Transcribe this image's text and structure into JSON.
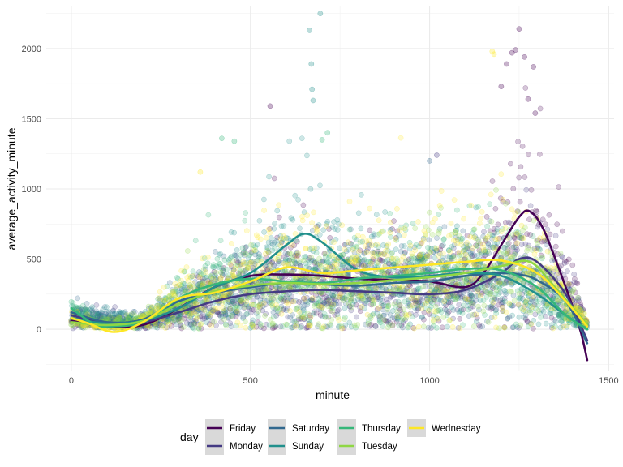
{
  "chart_data": {
    "type": "scatter",
    "xlabel": "minute",
    "ylabel": "average_activity_minute",
    "xlim": [
      -70,
      1515
    ],
    "ylim": [
      -300,
      2300
    ],
    "x_ticks": [
      0,
      500,
      1000,
      1500
    ],
    "y_ticks": [
      0,
      500,
      1000,
      1500,
      2000
    ],
    "grid": true,
    "legend": {
      "title": "day",
      "position": "bottom",
      "entries": [
        "Friday",
        "Monday",
        "Saturday",
        "Sunday",
        "Thursday",
        "Tuesday",
        "Wednesday"
      ]
    },
    "series": [
      {
        "name": "Friday",
        "color": "#440154",
        "smooth": [
          [
            0,
            60
          ],
          [
            100,
            20
          ],
          [
            200,
            30
          ],
          [
            300,
            150
          ],
          [
            400,
            300
          ],
          [
            500,
            380
          ],
          [
            600,
            390
          ],
          [
            700,
            380
          ],
          [
            800,
            360
          ],
          [
            900,
            350
          ],
          [
            1000,
            340
          ],
          [
            1100,
            300
          ],
          [
            1150,
            400
          ],
          [
            1200,
            600
          ],
          [
            1250,
            800
          ],
          [
            1280,
            840
          ],
          [
            1320,
            700
          ],
          [
            1380,
            300
          ],
          [
            1420,
            0
          ],
          [
            1440,
            -220
          ]
        ],
        "scatter_profile": [
          [
            0,
            60
          ],
          [
            200,
            30
          ],
          [
            300,
            120
          ],
          [
            400,
            250
          ],
          [
            500,
            350
          ],
          [
            600,
            380
          ],
          [
            700,
            360
          ],
          [
            800,
            340
          ],
          [
            900,
            330
          ],
          [
            1000,
            330
          ],
          [
            1100,
            320
          ],
          [
            1150,
            380
          ],
          [
            1200,
            550
          ],
          [
            1250,
            780
          ],
          [
            1300,
            760
          ],
          [
            1350,
            500
          ],
          [
            1440,
            40
          ]
        ]
      },
      {
        "name": "Monday",
        "color": "#443A83",
        "smooth": [
          [
            0,
            100
          ],
          [
            100,
            40
          ],
          [
            200,
            50
          ],
          [
            300,
            120
          ],
          [
            400,
            200
          ],
          [
            500,
            250
          ],
          [
            600,
            270
          ],
          [
            700,
            280
          ],
          [
            800,
            270
          ],
          [
            900,
            260
          ],
          [
            1000,
            250
          ],
          [
            1100,
            280
          ],
          [
            1200,
            400
          ],
          [
            1250,
            500
          ],
          [
            1300,
            480
          ],
          [
            1380,
            250
          ],
          [
            1440,
            -80
          ]
        ],
        "scatter_profile": [
          [
            0,
            90
          ],
          [
            200,
            50
          ],
          [
            300,
            110
          ],
          [
            400,
            190
          ],
          [
            500,
            240
          ],
          [
            600,
            260
          ],
          [
            700,
            270
          ],
          [
            800,
            260
          ],
          [
            900,
            250
          ],
          [
            1000,
            250
          ],
          [
            1100,
            270
          ],
          [
            1200,
            380
          ],
          [
            1250,
            480
          ],
          [
            1300,
            460
          ],
          [
            1380,
            260
          ],
          [
            1440,
            30
          ]
        ]
      },
      {
        "name": "Saturday",
        "color": "#31688E",
        "smooth": [
          [
            0,
            120
          ],
          [
            100,
            50
          ],
          [
            200,
            70
          ],
          [
            300,
            200
          ],
          [
            400,
            260
          ],
          [
            500,
            300
          ],
          [
            600,
            330
          ],
          [
            700,
            320
          ],
          [
            800,
            310
          ],
          [
            900,
            330
          ],
          [
            1000,
            340
          ],
          [
            1100,
            380
          ],
          [
            1200,
            400
          ],
          [
            1250,
            390
          ],
          [
            1300,
            350
          ],
          [
            1380,
            200
          ],
          [
            1440,
            -100
          ]
        ],
        "scatter_profile": [
          [
            0,
            110
          ],
          [
            200,
            70
          ],
          [
            300,
            180
          ],
          [
            400,
            250
          ],
          [
            500,
            290
          ],
          [
            600,
            320
          ],
          [
            700,
            310
          ],
          [
            800,
            300
          ],
          [
            900,
            320
          ],
          [
            1000,
            330
          ],
          [
            1100,
            360
          ],
          [
            1200,
            390
          ],
          [
            1250,
            380
          ],
          [
            1300,
            340
          ],
          [
            1380,
            200
          ],
          [
            1440,
            30
          ]
        ]
      },
      {
        "name": "Sunday",
        "color": "#21908C",
        "smooth": [
          [
            0,
            80
          ],
          [
            100,
            40
          ],
          [
            200,
            60
          ],
          [
            300,
            150
          ],
          [
            400,
            300
          ],
          [
            500,
            400
          ],
          [
            600,
            600
          ],
          [
            650,
            680
          ],
          [
            700,
            620
          ],
          [
            800,
            420
          ],
          [
            900,
            370
          ],
          [
            1000,
            380
          ],
          [
            1100,
            400
          ],
          [
            1200,
            380
          ],
          [
            1300,
            250
          ],
          [
            1380,
            100
          ],
          [
            1440,
            0
          ]
        ],
        "scatter_profile": [
          [
            0,
            80
          ],
          [
            200,
            60
          ],
          [
            300,
            140
          ],
          [
            400,
            290
          ],
          [
            500,
            400
          ],
          [
            600,
            580
          ],
          [
            650,
            660
          ],
          [
            700,
            600
          ],
          [
            800,
            420
          ],
          [
            900,
            370
          ],
          [
            1000,
            380
          ],
          [
            1100,
            390
          ],
          [
            1200,
            370
          ],
          [
            1300,
            250
          ],
          [
            1380,
            110
          ],
          [
            1440,
            30
          ]
        ]
      },
      {
        "name": "Thursday",
        "color": "#35B779",
        "smooth": [
          [
            0,
            150
          ],
          [
            60,
            40
          ],
          [
            100,
            20
          ],
          [
            200,
            50
          ],
          [
            300,
            220
          ],
          [
            400,
            320
          ],
          [
            500,
            360
          ],
          [
            600,
            340
          ],
          [
            700,
            330
          ],
          [
            800,
            360
          ],
          [
            900,
            380
          ],
          [
            1000,
            400
          ],
          [
            1100,
            430
          ],
          [
            1200,
            420
          ],
          [
            1300,
            300
          ],
          [
            1380,
            100
          ],
          [
            1440,
            0
          ]
        ],
        "scatter_profile": [
          [
            0,
            140
          ],
          [
            100,
            30
          ],
          [
            200,
            50
          ],
          [
            300,
            210
          ],
          [
            400,
            310
          ],
          [
            500,
            350
          ],
          [
            600,
            340
          ],
          [
            700,
            330
          ],
          [
            800,
            350
          ],
          [
            900,
            370
          ],
          [
            1000,
            390
          ],
          [
            1100,
            420
          ],
          [
            1200,
            410
          ],
          [
            1300,
            300
          ],
          [
            1380,
            110
          ],
          [
            1440,
            30
          ]
        ]
      },
      {
        "name": "Tuesday",
        "color": "#8FD744",
        "smooth": [
          [
            0,
            50
          ],
          [
            100,
            30
          ],
          [
            200,
            60
          ],
          [
            300,
            180
          ],
          [
            400,
            270
          ],
          [
            500,
            310
          ],
          [
            600,
            330
          ],
          [
            700,
            320
          ],
          [
            800,
            330
          ],
          [
            900,
            350
          ],
          [
            1000,
            370
          ],
          [
            1100,
            400
          ],
          [
            1200,
            450
          ],
          [
            1280,
            480
          ],
          [
            1350,
            300
          ],
          [
            1440,
            30
          ]
        ],
        "scatter_profile": [
          [
            0,
            50
          ],
          [
            200,
            60
          ],
          [
            300,
            170
          ],
          [
            400,
            260
          ],
          [
            500,
            300
          ],
          [
            600,
            320
          ],
          [
            700,
            310
          ],
          [
            800,
            320
          ],
          [
            900,
            340
          ],
          [
            1000,
            360
          ],
          [
            1100,
            390
          ],
          [
            1200,
            440
          ],
          [
            1280,
            470
          ],
          [
            1350,
            300
          ],
          [
            1440,
            40
          ]
        ]
      },
      {
        "name": "Wednesday",
        "color": "#FDE725",
        "smooth": [
          [
            0,
            80
          ],
          [
            50,
            40
          ],
          [
            120,
            -20
          ],
          [
            200,
            50
          ],
          [
            300,
            220
          ],
          [
            400,
            260
          ],
          [
            500,
            340
          ],
          [
            600,
            440
          ],
          [
            700,
            400
          ],
          [
            800,
            420
          ],
          [
            900,
            440
          ],
          [
            1000,
            460
          ],
          [
            1100,
            480
          ],
          [
            1200,
            490
          ],
          [
            1300,
            400
          ],
          [
            1380,
            200
          ],
          [
            1440,
            20
          ]
        ],
        "scatter_profile": [
          [
            0,
            80
          ],
          [
            120,
            0
          ],
          [
            200,
            50
          ],
          [
            300,
            210
          ],
          [
            400,
            250
          ],
          [
            500,
            330
          ],
          [
            600,
            430
          ],
          [
            700,
            390
          ],
          [
            800,
            410
          ],
          [
            900,
            430
          ],
          [
            1000,
            450
          ],
          [
            1100,
            470
          ],
          [
            1200,
            480
          ],
          [
            1300,
            400
          ],
          [
            1380,
            210
          ],
          [
            1440,
            40
          ]
        ]
      }
    ],
    "outliers": [
      {
        "series": "Sunday",
        "x": 695,
        "y": 2250
      },
      {
        "series": "Sunday",
        "x": 665,
        "y": 2130
      },
      {
        "series": "Sunday",
        "x": 670,
        "y": 1890
      },
      {
        "series": "Sunday",
        "x": 672,
        "y": 1710
      },
      {
        "series": "Sunday",
        "x": 675,
        "y": 1630
      },
      {
        "series": "Thursday",
        "x": 700,
        "y": 1350
      },
      {
        "series": "Thursday",
        "x": 715,
        "y": 1400
      },
      {
        "series": "Thursday",
        "x": 420,
        "y": 1360
      },
      {
        "series": "Thursday",
        "x": 455,
        "y": 1340
      },
      {
        "series": "Friday",
        "x": 555,
        "y": 1590
      },
      {
        "series": "Friday",
        "x": 1250,
        "y": 2140
      },
      {
        "series": "Friday",
        "x": 1240,
        "y": 1990
      },
      {
        "series": "Friday",
        "x": 1230,
        "y": 1970
      },
      {
        "series": "Friday",
        "x": 1265,
        "y": 1940
      },
      {
        "series": "Friday",
        "x": 1290,
        "y": 1870
      },
      {
        "series": "Friday",
        "x": 1215,
        "y": 1890
      },
      {
        "series": "Friday",
        "x": 1200,
        "y": 1730
      },
      {
        "series": "Friday",
        "x": 1275,
        "y": 1640
      },
      {
        "series": "Friday",
        "x": 1295,
        "y": 1540
      },
      {
        "series": "Wednesday",
        "x": 1175,
        "y": 1980
      },
      {
        "series": "Wednesday",
        "x": 1180,
        "y": 1960
      },
      {
        "series": "Monday",
        "x": 1020,
        "y": 1240
      },
      {
        "series": "Saturday",
        "x": 1000,
        "y": 1200
      },
      {
        "series": "Wednesday",
        "x": 360,
        "y": 1120
      }
    ]
  }
}
